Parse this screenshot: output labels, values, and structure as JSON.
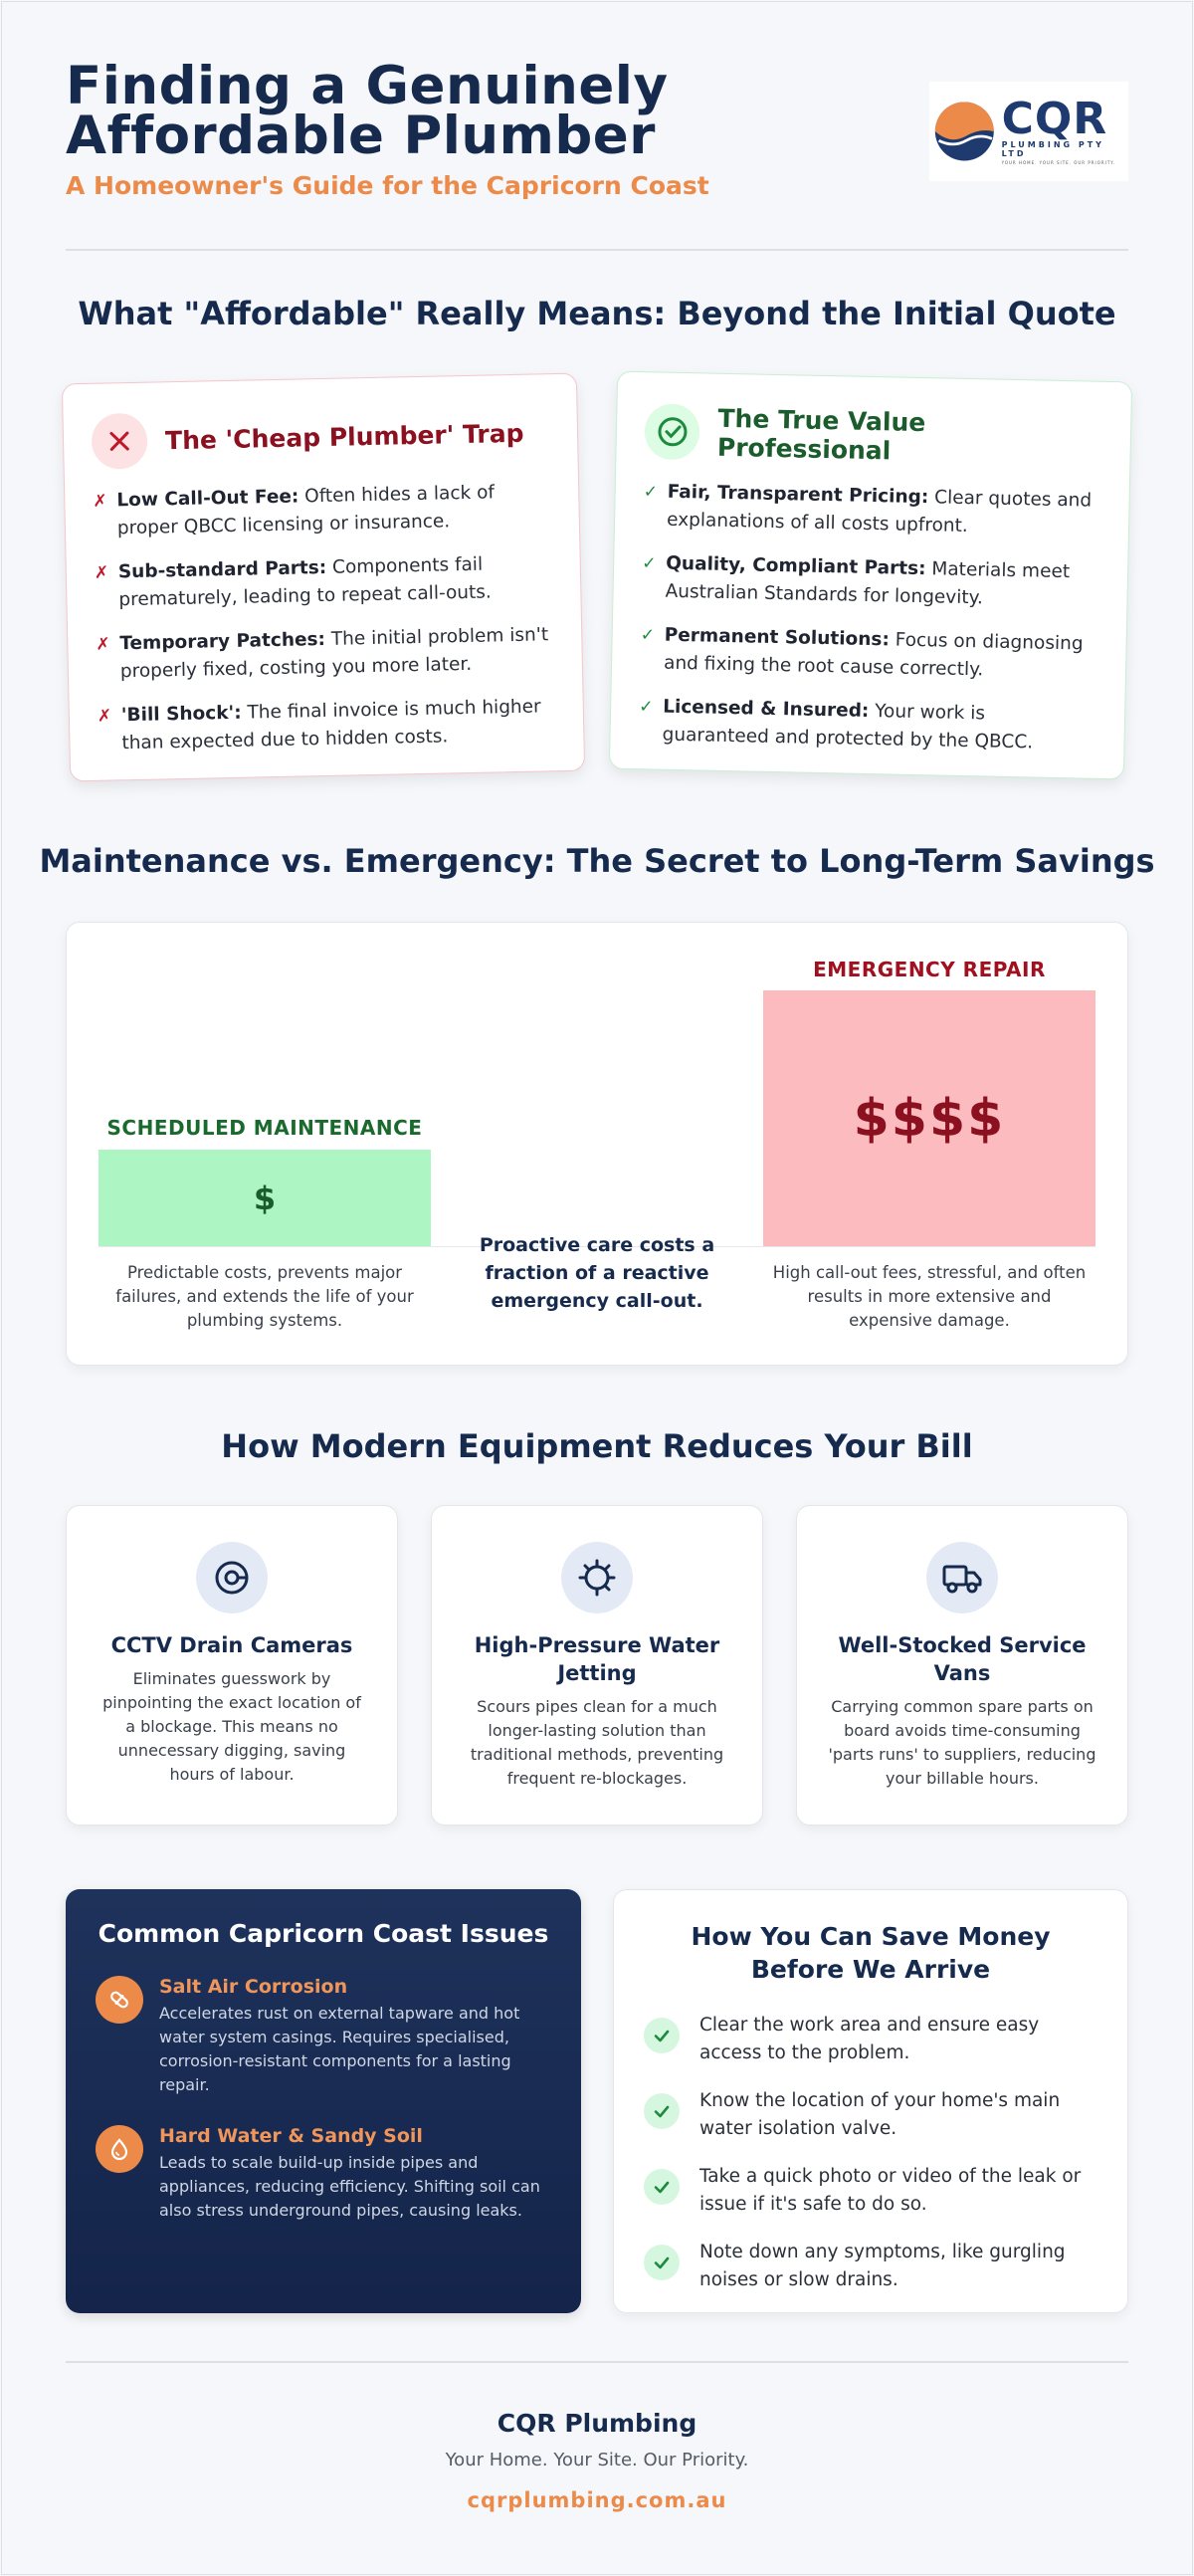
{
  "header": {
    "title": "Finding a Genuinely Affordable Plumber",
    "subtitle": "A Homeowner's Guide for the Capricorn Coast",
    "logo": {
      "main": "CQR",
      "sub": "PLUMBING PTY LTD",
      "tagline": "YOUR HOME. YOUR SITE. OUR PRIORITY."
    }
  },
  "affordable": {
    "title": "What \"Affordable\" Really Means: Beyond the Initial Quote",
    "trap": {
      "icon": "x-icon",
      "heading": "The 'Cheap Plumber' Trap",
      "items": [
        {
          "mark": "✗",
          "label": "Low Call-Out Fee:",
          "text": " Often hides a lack of proper QBCC licensing or insurance."
        },
        {
          "mark": "✗",
          "label": "Sub-standard Parts:",
          "text": " Components fail prematurely, leading to repeat call-outs."
        },
        {
          "mark": "✗",
          "label": "Temporary Patches:",
          "text": " The initial problem isn't properly fixed, costing you more later."
        },
        {
          "mark": "✗",
          "label": "'Bill Shock':",
          "text": " The final invoice is much higher than expected due to hidden costs."
        }
      ]
    },
    "value": {
      "icon": "check-circle-icon",
      "heading": "The True Value Professional",
      "items": [
        {
          "mark": "✓",
          "label": "Fair, Transparent Pricing:",
          "text": " Clear quotes and explanations of all costs upfront."
        },
        {
          "mark": "✓",
          "label": "Quality, Compliant Parts:",
          "text": " Materials meet Australian Standards for longevity."
        },
        {
          "mark": "✓",
          "label": "Permanent Solutions:",
          "text": " Focus on diagnosing and fixing the root cause correctly."
        },
        {
          "mark": "✓",
          "label": "Licensed & Insured:",
          "text": " Your work is guaranteed and protected by the QBCC."
        }
      ]
    }
  },
  "comparison": {
    "title": "Maintenance vs. Emergency: The Secret to Long-Term Savings",
    "maintenance": {
      "label": "SCHEDULED MAINTENANCE",
      "value": "$",
      "desc": "Predictable costs, prevents major failures, and extends the life of your plumbing systems."
    },
    "center_note": "Proactive care costs a fraction of a reactive emergency call-out.",
    "emergency": {
      "label": "EMERGENCY REPAIR",
      "value": "$$$$",
      "desc": "High call-out fees, stressful, and often results in more extensive and expensive damage."
    },
    "colors": {
      "maintenance": "#aef5c4",
      "emergency": "#fcbcbf"
    }
  },
  "equipment": {
    "title": "How Modern Equipment Reduces Your Bill",
    "items": [
      {
        "icon": "camera-icon",
        "title": "CCTV Drain Cameras",
        "desc": "Eliminates guesswork by pinpointing the exact location of a blockage. This means no unnecessary digging, saving hours of labour."
      },
      {
        "icon": "water-jet-icon",
        "title": "High-Pressure Water Jetting",
        "desc": "Scours pipes clean for a much longer-lasting solution than traditional methods, preventing frequent re-blockages."
      },
      {
        "icon": "truck-icon",
        "title": "Well-Stocked Service Vans",
        "desc": "Carrying common spare parts on board avoids time-consuming 'parts runs' to suppliers, reducing your billable hours."
      }
    ]
  },
  "issues": {
    "title": "Common Capricorn Coast Issues",
    "items": [
      {
        "icon": "pill-icon",
        "name": "Salt Air Corrosion",
        "desc": "Accelerates rust on external tapware and hot water system casings. Requires specialised, corrosion-resistant components for a lasting repair."
      },
      {
        "icon": "water-drop-icon",
        "name": "Hard Water & Sandy Soil",
        "desc": "Leads to scale build-up inside pipes and appliances, reducing efficiency. Shifting soil can also stress underground pipes, causing leaks."
      }
    ]
  },
  "save": {
    "title": "How You Can Save Money Before We Arrive",
    "items": [
      "Clear the work area and ensure easy access to the problem.",
      "Know the location of your home's main water isolation valve.",
      "Take a quick photo or video of the leak or issue if it's safe to do so.",
      "Note down any symptoms, like gurgling noises or slow drains."
    ]
  },
  "footer": {
    "name": "CQR Plumbing",
    "tagline": "Your Home. Your Site. Our Priority.",
    "url": "cqrplumbing.com.au"
  },
  "colors": {
    "navy": "#162a4d",
    "orange": "#ec8a4a",
    "trap_red": "#8b1020",
    "value_green": "#1a5c2c"
  }
}
